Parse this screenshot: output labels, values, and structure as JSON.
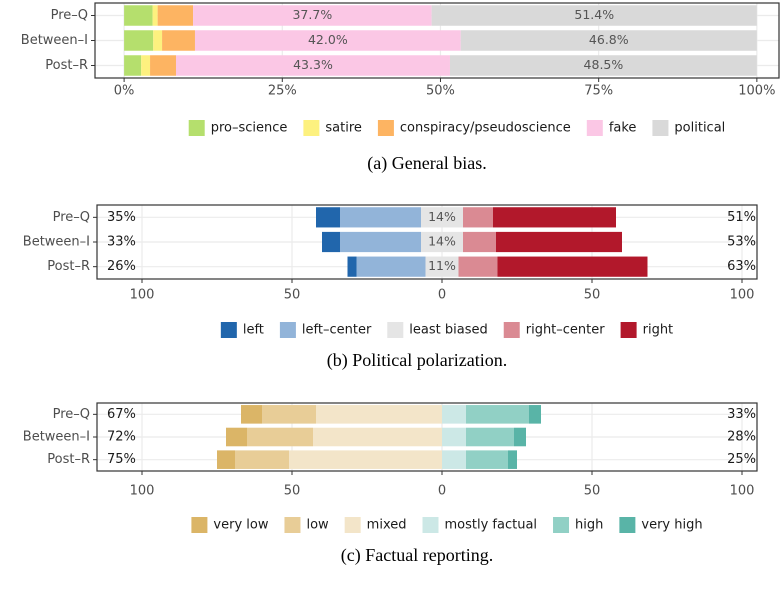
{
  "chart_data": [
    {
      "type": "bar",
      "orientation": "horizontal",
      "stacked": true,
      "diverging": false,
      "caption": "(a) General bias.",
      "categories": [
        "Pre–Q",
        "Between–I",
        "Post–R"
      ],
      "series": [
        {
          "name": "pro–science",
          "color": "#b5df6d",
          "values": [
            4.5,
            4.6,
            2.7
          ]
        },
        {
          "name": "satire",
          "color": "#fdf17f",
          "values": [
            0.8,
            1.4,
            1.4
          ]
        },
        {
          "name": "conspiracy/pseudoscience",
          "color": "#fdb462",
          "values": [
            5.6,
            5.2,
            4.1
          ]
        },
        {
          "name": "fake",
          "color": "#fbc7e5",
          "values": [
            37.7,
            42.0,
            43.3
          ],
          "value_labels": [
            "37.7%",
            "42.0%",
            "43.3%"
          ]
        },
        {
          "name": "political",
          "color": "#d9d9d9",
          "values": [
            51.4,
            46.8,
            48.5
          ],
          "value_labels": [
            "51.4%",
            "46.8%",
            "48.5%"
          ]
        }
      ],
      "xlim": [
        -4.6,
        103.5
      ],
      "xticks": [
        {
          "value": 0,
          "label": "0%"
        },
        {
          "value": 25,
          "label": "25%"
        },
        {
          "value": 50,
          "label": "50%"
        },
        {
          "value": 75,
          "label": "75%"
        },
        {
          "value": 100,
          "label": "100%"
        }
      ],
      "grid": true,
      "legend": "bottom"
    },
    {
      "type": "bar",
      "orientation": "horizontal",
      "stacked": true,
      "diverging": true,
      "caption": "(b) Political polarization.",
      "categories": [
        "Pre–Q",
        "Between–I",
        "Post–R"
      ],
      "series": [
        {
          "name": "left",
          "color": "#2166ac",
          "side": "left",
          "values": [
            8,
            6,
            3
          ]
        },
        {
          "name": "left–center",
          "color": "#92b4d9",
          "side": "left",
          "values": [
            27,
            27,
            23
          ]
        },
        {
          "name": "least biased",
          "color": "#e5e5e5",
          "side": "center",
          "values": [
            14,
            14,
            11
          ],
          "value_labels": [
            "14%",
            "14%",
            "11%"
          ]
        },
        {
          "name": "right–center",
          "color": "#da8a93",
          "side": "right",
          "values": [
            10,
            11,
            13
          ]
        },
        {
          "name": "right",
          "color": "#b2182b",
          "side": "right",
          "values": [
            41,
            42,
            50
          ]
        }
      ],
      "left_labels": [
        "35%",
        "33%",
        "26%"
      ],
      "right_labels": [
        "51%",
        "53%",
        "63%"
      ],
      "xlim": [
        -115,
        105
      ],
      "xticks": [
        {
          "value": -100,
          "label": "100"
        },
        {
          "value": -50,
          "label": "50"
        },
        0,
        50,
        100
      ],
      "grid": true,
      "legend": "bottom"
    },
    {
      "type": "bar",
      "orientation": "horizontal",
      "stacked": true,
      "diverging": true,
      "caption": "(c) Factual reporting.",
      "categories": [
        "Pre–Q",
        "Between–I",
        "Post–R"
      ],
      "series": [
        {
          "name": "very low",
          "color": "#dbb567",
          "side": "left",
          "values": [
            7,
            7,
            6
          ]
        },
        {
          "name": "low",
          "color": "#e8cd97",
          "side": "left",
          "values": [
            18,
            22,
            18
          ]
        },
        {
          "name": "mixed",
          "color": "#f3e5c9",
          "side": "left",
          "values": [
            42,
            43,
            51
          ]
        },
        {
          "name": "mostly factual",
          "color": "#cce8e6",
          "side": "right",
          "values": [
            8,
            8,
            8
          ]
        },
        {
          "name": "high",
          "color": "#91d0c5",
          "side": "right",
          "values": [
            21,
            16,
            14
          ]
        },
        {
          "name": "very high",
          "color": "#59b4a7",
          "side": "right",
          "values": [
            4,
            4,
            3
          ]
        }
      ],
      "left_labels": [
        "67%",
        "72%",
        "75%"
      ],
      "right_labels": [
        "33%",
        "28%",
        "25%"
      ],
      "xlim": [
        -115,
        105
      ],
      "xticks": [
        {
          "value": -100,
          "label": "100"
        },
        {
          "value": -50,
          "label": "50"
        },
        0,
        50,
        100
      ],
      "grid": true,
      "legend": "bottom"
    }
  ]
}
